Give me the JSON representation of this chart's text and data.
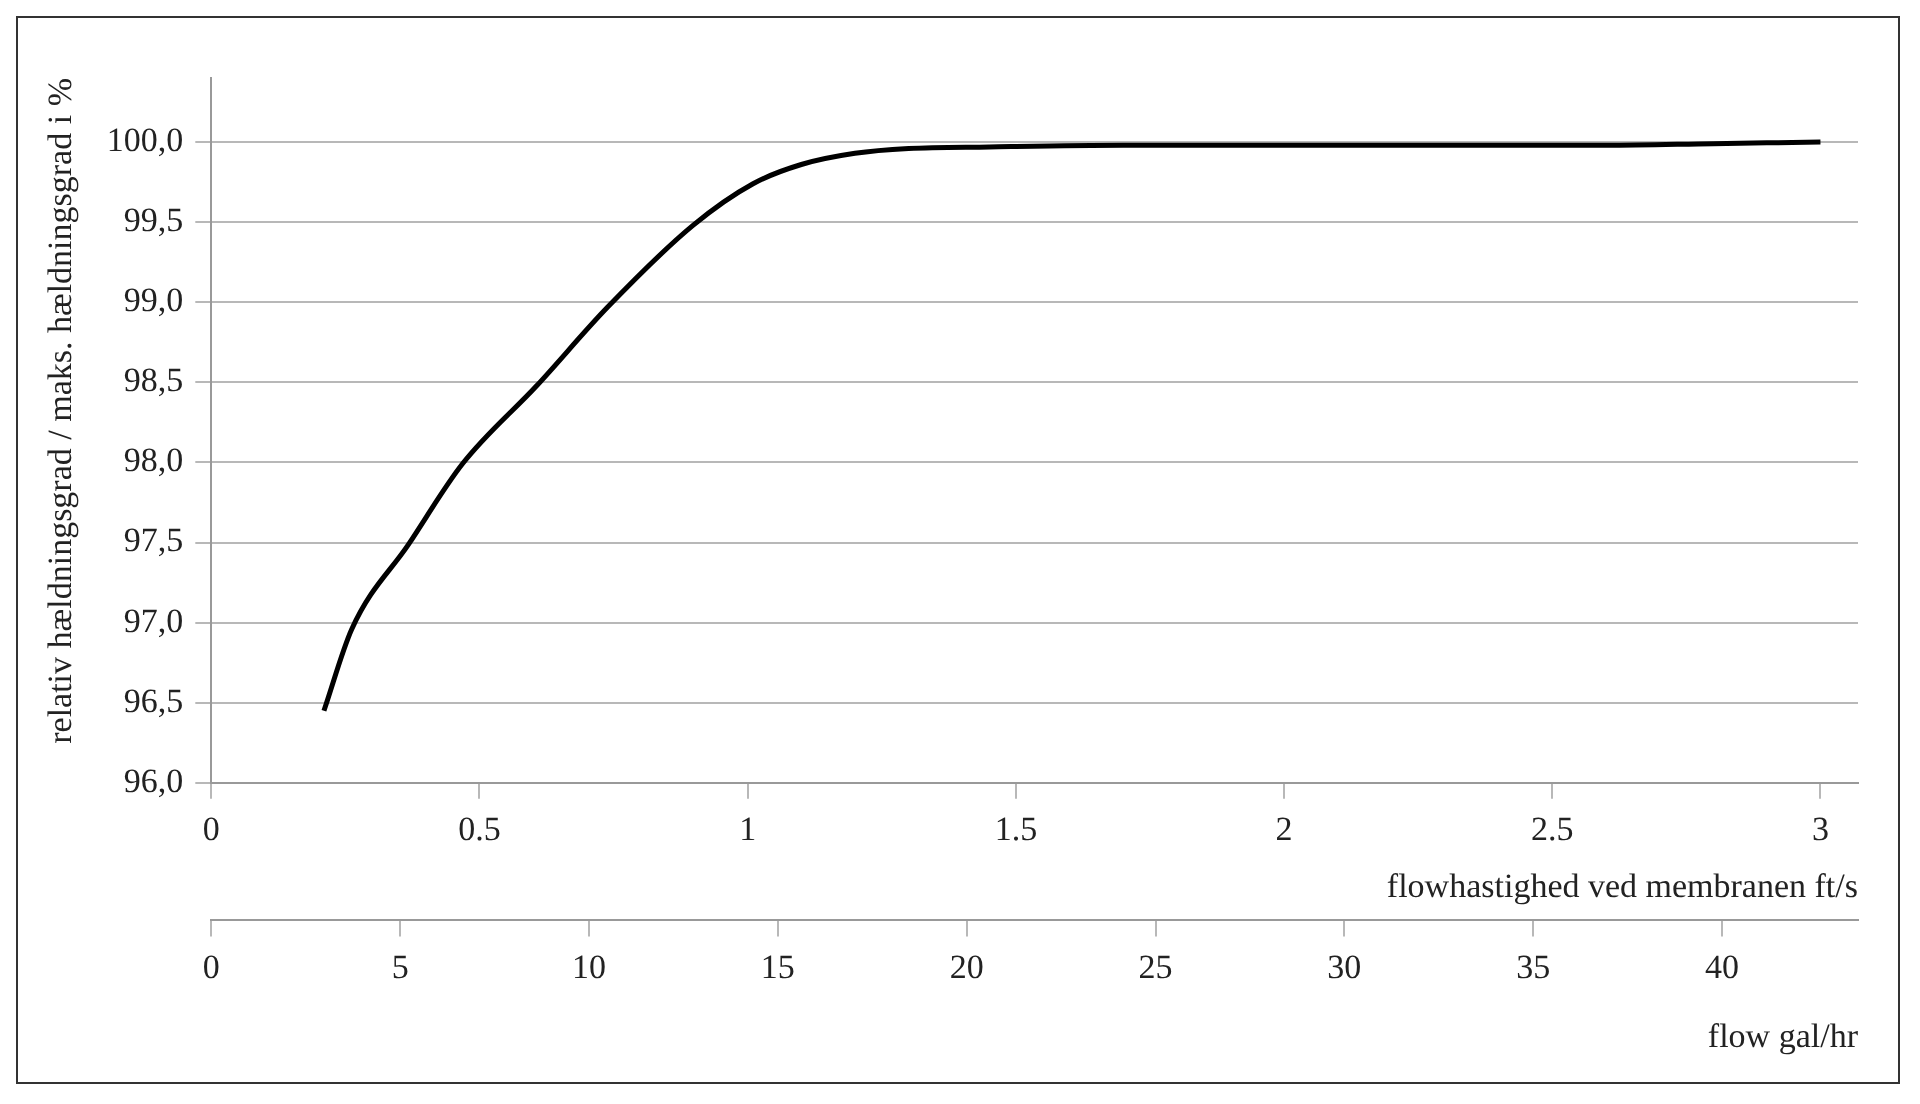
{
  "chart_data": {
    "type": "line",
    "xlabel": "flowhastighed ved membranen ft/s",
    "x2label": "flow gal/hr",
    "ylabel": "relativ hældningsgrad / maks. hældningsgrad i %",
    "series": [
      {
        "color": "#000000",
        "x": [
          0.21,
          0.262,
          0.368,
          0.468,
          0.607,
          0.739,
          0.898,
          1.01,
          1.1,
          1.2,
          1.3,
          1.45,
          1.7,
          2.0,
          2.3,
          2.6,
          2.8,
          3.0
        ],
        "values": [
          96.45,
          96.96,
          97.49,
          97.99,
          98.48,
          98.97,
          99.48,
          99.74,
          99.86,
          99.93,
          99.96,
          99.97,
          99.98,
          99.98,
          99.98,
          99.98,
          99.99,
          100.0
        ]
      }
    ],
    "xlim": [
      0,
      3.07
    ],
    "xticks": [
      0,
      0.5,
      1,
      1.5,
      2,
      2.5,
      3
    ],
    "x2lim": [
      0,
      43.6
    ],
    "x2ticks": [
      0,
      5,
      10,
      15,
      20,
      25,
      30,
      35,
      40
    ],
    "ylim": [
      96,
      100.4
    ],
    "yticks": [
      {
        "value": 96,
        "label": "96,0"
      },
      {
        "value": 96.5,
        "label": "96,5"
      },
      {
        "value": 97,
        "label": "97,0"
      },
      {
        "value": 97.5,
        "label": "97,5"
      },
      {
        "value": 98,
        "label": "98,0"
      },
      {
        "value": 98.5,
        "label": "98,5"
      },
      {
        "value": 99,
        "label": "99,0"
      },
      {
        "value": 99.5,
        "label": "99,5"
      },
      {
        "value": 100,
        "label": "100,0"
      }
    ],
    "grid": "y",
    "legend": false,
    "marker": "none",
    "line_style": "solid"
  }
}
